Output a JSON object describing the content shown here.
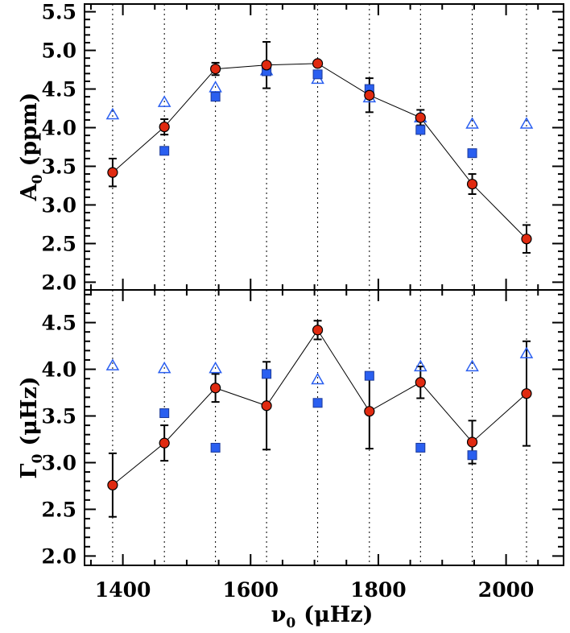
{
  "chart_data": {
    "type": "scatter",
    "x_label": {
      "symbol": "ν",
      "subscript": "0",
      "unit": "(μHz)"
    },
    "x_ticks": [
      1400,
      1600,
      1800,
      2000
    ],
    "x_range": [
      1340,
      2090
    ],
    "x_minor_step": 50,
    "frequencies": [
      1384,
      1465,
      1545,
      1625,
      1705,
      1786,
      1866,
      1947,
      2032
    ],
    "panels": [
      {
        "id": "amplitude",
        "y_label": {
          "symbol": "A",
          "subscript": "0",
          "unit": "(ppm)"
        },
        "y_range": [
          1.9,
          5.6
        ],
        "y_ticks": [
          2.0,
          2.5,
          3.0,
          3.5,
          4.0,
          4.5,
          5.0,
          5.5
        ],
        "y_tick_labels": [
          "2.0",
          "2.5",
          "3.0",
          "3.5",
          "4.0",
          "4.5",
          "5.0",
          "5.5"
        ],
        "y_minor_step": 0.1,
        "series": [
          {
            "name": "fit",
            "marker": "circle",
            "color": "#e02a10",
            "connected": true,
            "values": [
              3.42,
              4.01,
              4.76,
              4.81,
              4.83,
              4.42,
              4.13,
              3.27,
              2.56
            ],
            "errors": [
              0.18,
              0.1,
              0.08,
              0.3,
              0.03,
              0.22,
              0.1,
              0.13,
              0.18
            ]
          },
          {
            "name": "squares",
            "marker": "square",
            "color": "#2a5ff0",
            "values": [
              null,
              3.7,
              4.4,
              4.73,
              4.69,
              4.5,
              3.97,
              3.67,
              null
            ]
          },
          {
            "name": "triangles",
            "marker": "triangle",
            "color": "#2a5ff0",
            "values": [
              4.17,
              4.33,
              4.52,
              4.74,
              4.63,
              4.39,
              4.13,
              4.05,
              4.05
            ]
          }
        ]
      },
      {
        "id": "width",
        "y_label": {
          "symbol": "Γ",
          "subscript": "0",
          "unit": "(μHz)"
        },
        "y_range": [
          1.9,
          4.85
        ],
        "y_ticks": [
          2.0,
          2.5,
          3.0,
          3.5,
          4.0,
          4.5
        ],
        "y_tick_labels": [
          "2.0",
          "2.5",
          "3.0",
          "3.5",
          "4.0",
          "4.5"
        ],
        "y_minor_step": 0.1,
        "series": [
          {
            "name": "fit",
            "marker": "circle",
            "color": "#e02a10",
            "connected": true,
            "values": [
              2.76,
              3.21,
              3.8,
              3.61,
              4.42,
              3.55,
              3.86,
              3.22,
              3.74
            ],
            "errors": [
              0.34,
              0.19,
              0.15,
              0.47,
              0.1,
              0.4,
              0.17,
              0.23,
              0.56
            ]
          },
          {
            "name": "squares",
            "marker": "square",
            "color": "#2a5ff0",
            "values": [
              null,
              3.53,
              3.16,
              3.95,
              3.64,
              3.93,
              3.16,
              3.08,
              null
            ]
          },
          {
            "name": "triangles",
            "marker": "triangle",
            "color": "#2a5ff0",
            "values": [
              4.04,
              4.01,
              4.01,
              null,
              3.89,
              null,
              4.03,
              4.03,
              4.17
            ]
          }
        ]
      }
    ]
  }
}
